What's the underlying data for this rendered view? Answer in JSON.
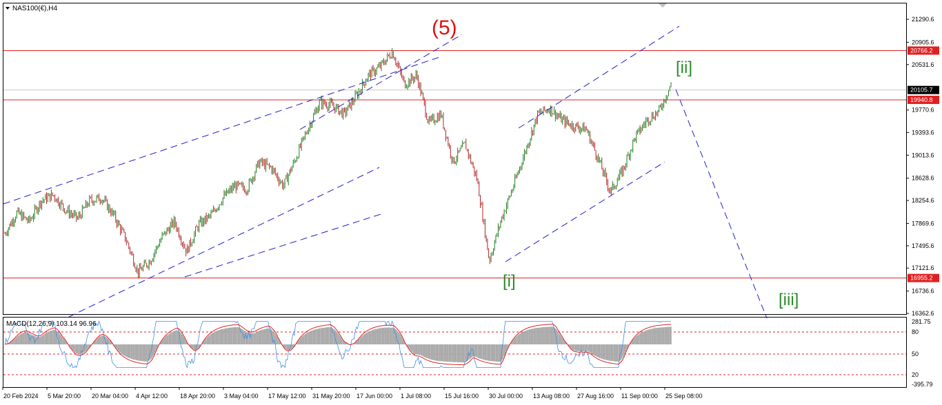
{
  "symbol_label": "NAS100(€),H4",
  "indicator_label": "MACD(12,26,9) 103.14 96.96",
  "colors": {
    "up": "#1e7d1e",
    "down": "#b22222",
    "hline": "#e02020",
    "trend": "#1c1ccc",
    "wave_red": "#e01010",
    "wave_green": "#2a8a2a",
    "price_tag_bg": "#e02020",
    "current_tag_bg": "#000000",
    "macd_line": "#3a8ee6",
    "macd_signal": "#e02020",
    "macd_hist": "#a8a8a8"
  },
  "price_axis": {
    "ticks": [
      "21290.6",
      "20905.6",
      "20531.6",
      "19770.6",
      "19393.6",
      "19013.6",
      "18628.6",
      "18254.6",
      "17869.6",
      "17495.6",
      "17121.6",
      "16736.6",
      "16362.6"
    ],
    "min": 16362.6,
    "max": 21500
  },
  "price_tags": [
    {
      "text": "20766.2",
      "value": 20766.2,
      "type": "level"
    },
    {
      "text": "20105.7",
      "value": 20105.7,
      "type": "current"
    },
    {
      "text": "19940.8",
      "value": 19940.8,
      "type": "level"
    },
    {
      "text": "16955.2",
      "value": 16955.2,
      "type": "level"
    }
  ],
  "time_axis": [
    "20 Feb 2024",
    "5 Mar 20:00",
    "20 Mar 04:00",
    "4 Apr 12:00",
    "18 Apr 20:00",
    "3 May 04:00",
    "17 May 12:00",
    "31 May 20:00",
    "17 Jun 00:00",
    "1 Jul 08:00",
    "15 Jul 16:00",
    "30 Jul 00:00",
    "13 Aug 08:00",
    "27 Aug 16:00",
    "11 Sep 00:00",
    "25 Sep 08:00"
  ],
  "wave_labels": [
    {
      "text": "(5)",
      "color": "wave_red"
    },
    {
      "text": "[ii]",
      "color": "wave_green"
    },
    {
      "text": "[i]",
      "color": "wave_green"
    },
    {
      "text": "[iii]",
      "color": "wave_green"
    }
  ],
  "macd_axis": [
    "281.75",
    "80",
    "50",
    "20",
    "-395.79"
  ],
  "chart_data": {
    "type": "candlestick",
    "title": "NAS100(€),H4",
    "price_range": [
      16362.6,
      21500
    ],
    "price_path": [
      [
        0,
        17700
      ],
      [
        1,
        18050
      ],
      [
        2,
        17900
      ],
      [
        3,
        18250
      ],
      [
        4,
        18350
      ],
      [
        5,
        18100
      ],
      [
        6,
        17950
      ],
      [
        7,
        18250
      ],
      [
        8,
        18300
      ],
      [
        9,
        18000
      ],
      [
        10,
        17600
      ],
      [
        11,
        17050
      ],
      [
        12,
        17250
      ],
      [
        13,
        17650
      ],
      [
        14,
        17900
      ],
      [
        15,
        17400
      ],
      [
        16,
        17850
      ],
      [
        17,
        18000
      ],
      [
        18,
        18300
      ],
      [
        19,
        18500
      ],
      [
        20,
        18450
      ],
      [
        21,
        18900
      ],
      [
        22,
        18800
      ],
      [
        23,
        18500
      ],
      [
        24,
        18950
      ],
      [
        25,
        19450
      ],
      [
        26,
        19900
      ],
      [
        27,
        19850
      ],
      [
        28,
        19700
      ],
      [
        29,
        20000
      ],
      [
        30,
        20350
      ],
      [
        31,
        20500
      ],
      [
        32,
        20750
      ],
      [
        33,
        20200
      ],
      [
        34,
        20350
      ],
      [
        35,
        19550
      ],
      [
        36,
        19700
      ],
      [
        37,
        18900
      ],
      [
        38,
        19200
      ],
      [
        39,
        18600
      ],
      [
        40,
        17250
      ],
      [
        41,
        17950
      ],
      [
        42,
        18500
      ],
      [
        43,
        19100
      ],
      [
        44,
        19700
      ],
      [
        45,
        19800
      ],
      [
        46,
        19600
      ],
      [
        47,
        19500
      ],
      [
        48,
        19450
      ],
      [
        49,
        18950
      ],
      [
        50,
        18400
      ],
      [
        51,
        18750
      ],
      [
        52,
        19300
      ],
      [
        53,
        19600
      ],
      [
        54,
        19750
      ],
      [
        55,
        20200
      ]
    ],
    "macd": {
      "main": 103.14,
      "signal": 96.96,
      "levels": [
        80,
        50,
        20
      ],
      "range": [
        -395.79,
        281.75
      ]
    }
  }
}
